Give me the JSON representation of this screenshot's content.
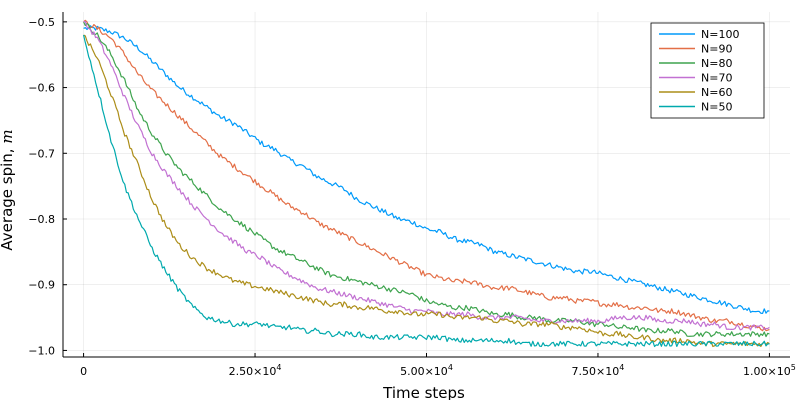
{
  "chart_data": {
    "type": "line",
    "title": "",
    "xlabel": "Time steps",
    "ylabel": "Average spin, ",
    "ylabel_symbol": "m",
    "xlim": [
      -3000,
      103000
    ],
    "ylim": [
      -1.01,
      -0.485
    ],
    "xticks": [
      {
        "value": 0,
        "label": "0",
        "sup": ""
      },
      {
        "value": 25000,
        "label": "2.50×10",
        "sup": "4"
      },
      {
        "value": 50000,
        "label": "5.00×10",
        "sup": "4"
      },
      {
        "value": 75000,
        "label": "7.50×10",
        "sup": "4"
      },
      {
        "value": 100000,
        "label": "1.00×10",
        "sup": "5"
      }
    ],
    "yticks": [
      {
        "value": -0.5,
        "label": "−0.5"
      },
      {
        "value": -0.6,
        "label": "−0.6"
      },
      {
        "value": -0.7,
        "label": "−0.7"
      },
      {
        "value": -0.8,
        "label": "−0.8"
      },
      {
        "value": -0.9,
        "label": "−0.9"
      },
      {
        "value": -1.0,
        "label": "−1.0"
      }
    ],
    "grid": true,
    "legend_position": "top-right",
    "series": [
      {
        "name": "N=100",
        "color": "#009AFA",
        "x": [
          0,
          2000,
          4000,
          6000,
          8000,
          10000,
          12000,
          14000,
          16000,
          18000,
          20000,
          22000,
          24000,
          26000,
          28000,
          30000,
          32000,
          34000,
          36000,
          38000,
          40000,
          42000,
          44000,
          46000,
          48000,
          50000,
          52000,
          54000,
          56000,
          58000,
          60000,
          62000,
          64000,
          66000,
          68000,
          70000,
          72000,
          74000,
          76000,
          78000,
          80000,
          82000,
          84000,
          86000,
          88000,
          90000,
          92000,
          94000,
          96000,
          98000,
          100000
        ],
        "y": [
          -0.51,
          -0.51,
          -0.515,
          -0.525,
          -0.54,
          -0.56,
          -0.58,
          -0.6,
          -0.615,
          -0.63,
          -0.645,
          -0.655,
          -0.67,
          -0.685,
          -0.695,
          -0.71,
          -0.72,
          -0.735,
          -0.745,
          -0.755,
          -0.77,
          -0.78,
          -0.79,
          -0.8,
          -0.805,
          -0.815,
          -0.82,
          -0.83,
          -0.835,
          -0.84,
          -0.85,
          -0.855,
          -0.86,
          -0.865,
          -0.87,
          -0.875,
          -0.88,
          -0.88,
          -0.885,
          -0.89,
          -0.895,
          -0.9,
          -0.905,
          -0.91,
          -0.915,
          -0.92,
          -0.925,
          -0.93,
          -0.935,
          -0.94,
          -0.94
        ]
      },
      {
        "name": "N=90",
        "color": "#E36F47",
        "x": [
          0,
          2000,
          4000,
          6000,
          8000,
          10000,
          12000,
          14000,
          16000,
          18000,
          20000,
          22000,
          24000,
          26000,
          28000,
          30000,
          32000,
          34000,
          36000,
          38000,
          40000,
          42000,
          44000,
          46000,
          48000,
          50000,
          52000,
          54000,
          56000,
          58000,
          60000,
          62000,
          64000,
          66000,
          68000,
          70000,
          72000,
          74000,
          76000,
          78000,
          80000,
          82000,
          84000,
          86000,
          88000,
          90000,
          92000,
          94000,
          96000,
          98000,
          100000
        ],
        "y": [
          -0.5,
          -0.51,
          -0.525,
          -0.55,
          -0.58,
          -0.605,
          -0.625,
          -0.645,
          -0.665,
          -0.685,
          -0.705,
          -0.72,
          -0.735,
          -0.75,
          -0.765,
          -0.78,
          -0.79,
          -0.805,
          -0.815,
          -0.825,
          -0.835,
          -0.845,
          -0.855,
          -0.865,
          -0.875,
          -0.885,
          -0.89,
          -0.895,
          -0.895,
          -0.9,
          -0.905,
          -0.905,
          -0.91,
          -0.915,
          -0.92,
          -0.92,
          -0.925,
          -0.925,
          -0.93,
          -0.93,
          -0.935,
          -0.935,
          -0.94,
          -0.94,
          -0.945,
          -0.95,
          -0.955,
          -0.955,
          -0.96,
          -0.965,
          -0.968
        ]
      },
      {
        "name": "N=80",
        "color": "#3EA44E",
        "x": [
          0,
          2000,
          4000,
          6000,
          8000,
          10000,
          12000,
          14000,
          16000,
          18000,
          20000,
          22000,
          24000,
          26000,
          28000,
          30000,
          32000,
          34000,
          36000,
          38000,
          40000,
          42000,
          44000,
          46000,
          48000,
          50000,
          52000,
          54000,
          56000,
          58000,
          60000,
          62000,
          64000,
          66000,
          68000,
          70000,
          72000,
          74000,
          76000,
          78000,
          80000,
          82000,
          84000,
          86000,
          88000,
          90000,
          92000,
          94000,
          96000,
          98000,
          100000
        ],
        "y": [
          -0.5,
          -0.52,
          -0.55,
          -0.59,
          -0.635,
          -0.67,
          -0.7,
          -0.725,
          -0.745,
          -0.765,
          -0.785,
          -0.8,
          -0.815,
          -0.83,
          -0.845,
          -0.855,
          -0.865,
          -0.875,
          -0.885,
          -0.89,
          -0.895,
          -0.9,
          -0.905,
          -0.91,
          -0.915,
          -0.925,
          -0.93,
          -0.935,
          -0.935,
          -0.94,
          -0.945,
          -0.945,
          -0.95,
          -0.95,
          -0.955,
          -0.955,
          -0.955,
          -0.96,
          -0.96,
          -0.965,
          -0.965,
          -0.97,
          -0.97,
          -0.97,
          -0.975,
          -0.975,
          -0.975,
          -0.975,
          -0.975,
          -0.975,
          -0.975
        ]
      },
      {
        "name": "N=70",
        "color": "#C271D2",
        "x": [
          0,
          2000,
          4000,
          6000,
          8000,
          10000,
          12000,
          14000,
          16000,
          18000,
          20000,
          22000,
          24000,
          26000,
          28000,
          30000,
          32000,
          34000,
          36000,
          38000,
          40000,
          42000,
          44000,
          46000,
          48000,
          50000,
          52000,
          54000,
          56000,
          58000,
          60000,
          62000,
          64000,
          66000,
          68000,
          70000,
          72000,
          74000,
          76000,
          78000,
          80000,
          82000,
          84000,
          86000,
          88000,
          90000,
          92000,
          94000,
          96000,
          98000,
          100000
        ],
        "y": [
          -0.5,
          -0.525,
          -0.565,
          -0.615,
          -0.66,
          -0.7,
          -0.73,
          -0.755,
          -0.78,
          -0.8,
          -0.82,
          -0.835,
          -0.85,
          -0.86,
          -0.875,
          -0.885,
          -0.895,
          -0.905,
          -0.91,
          -0.915,
          -0.92,
          -0.925,
          -0.93,
          -0.935,
          -0.94,
          -0.94,
          -0.945,
          -0.945,
          -0.945,
          -0.95,
          -0.95,
          -0.95,
          -0.95,
          -0.955,
          -0.955,
          -0.955,
          -0.955,
          -0.955,
          -0.955,
          -0.95,
          -0.95,
          -0.95,
          -0.955,
          -0.955,
          -0.955,
          -0.96,
          -0.96,
          -0.965,
          -0.965,
          -0.965,
          -0.965
        ]
      },
      {
        "name": "N=60",
        "color": "#AC8D18",
        "x": [
          0,
          2000,
          4000,
          6000,
          8000,
          10000,
          12000,
          14000,
          16000,
          18000,
          20000,
          22000,
          24000,
          26000,
          28000,
          30000,
          32000,
          34000,
          36000,
          38000,
          40000,
          42000,
          44000,
          46000,
          48000,
          50000,
          52000,
          54000,
          56000,
          58000,
          60000,
          62000,
          64000,
          66000,
          68000,
          70000,
          72000,
          74000,
          76000,
          78000,
          80000,
          82000,
          84000,
          86000,
          88000,
          90000,
          92000,
          94000,
          96000,
          98000,
          100000
        ],
        "y": [
          -0.52,
          -0.555,
          -0.61,
          -0.67,
          -0.72,
          -0.77,
          -0.81,
          -0.84,
          -0.86,
          -0.875,
          -0.885,
          -0.895,
          -0.9,
          -0.905,
          -0.91,
          -0.915,
          -0.92,
          -0.925,
          -0.93,
          -0.93,
          -0.935,
          -0.935,
          -0.94,
          -0.94,
          -0.945,
          -0.945,
          -0.945,
          -0.95,
          -0.95,
          -0.95,
          -0.955,
          -0.955,
          -0.96,
          -0.96,
          -0.96,
          -0.965,
          -0.965,
          -0.97,
          -0.975,
          -0.975,
          -0.98,
          -0.98,
          -0.985,
          -0.985,
          -0.985,
          -0.99,
          -0.99,
          -0.99,
          -0.99,
          -0.99,
          -0.99
        ]
      },
      {
        "name": "N=50",
        "color": "#00A9AD",
        "x": [
          0,
          2000,
          4000,
          6000,
          8000,
          10000,
          12000,
          14000,
          16000,
          18000,
          20000,
          22000,
          24000,
          26000,
          28000,
          30000,
          32000,
          34000,
          36000,
          38000,
          40000,
          42000,
          44000,
          46000,
          48000,
          50000,
          52000,
          54000,
          56000,
          58000,
          60000,
          62000,
          64000,
          66000,
          68000,
          70000,
          72000,
          74000,
          76000,
          78000,
          80000,
          82000,
          84000,
          86000,
          88000,
          90000,
          92000,
          94000,
          96000,
          98000,
          100000
        ],
        "y": [
          -0.52,
          -0.6,
          -0.68,
          -0.75,
          -0.8,
          -0.845,
          -0.88,
          -0.91,
          -0.935,
          -0.95,
          -0.955,
          -0.96,
          -0.96,
          -0.96,
          -0.965,
          -0.965,
          -0.97,
          -0.97,
          -0.975,
          -0.975,
          -0.975,
          -0.98,
          -0.98,
          -0.98,
          -0.98,
          -0.98,
          -0.98,
          -0.985,
          -0.985,
          -0.985,
          -0.985,
          -0.985,
          -0.99,
          -0.99,
          -0.99,
          -0.99,
          -0.99,
          -0.99,
          -0.99,
          -0.99,
          -0.99,
          -0.99,
          -0.99,
          -0.99,
          -0.99,
          -0.99,
          -0.99,
          -0.99,
          -0.99,
          -0.99,
          -0.99
        ]
      }
    ]
  }
}
